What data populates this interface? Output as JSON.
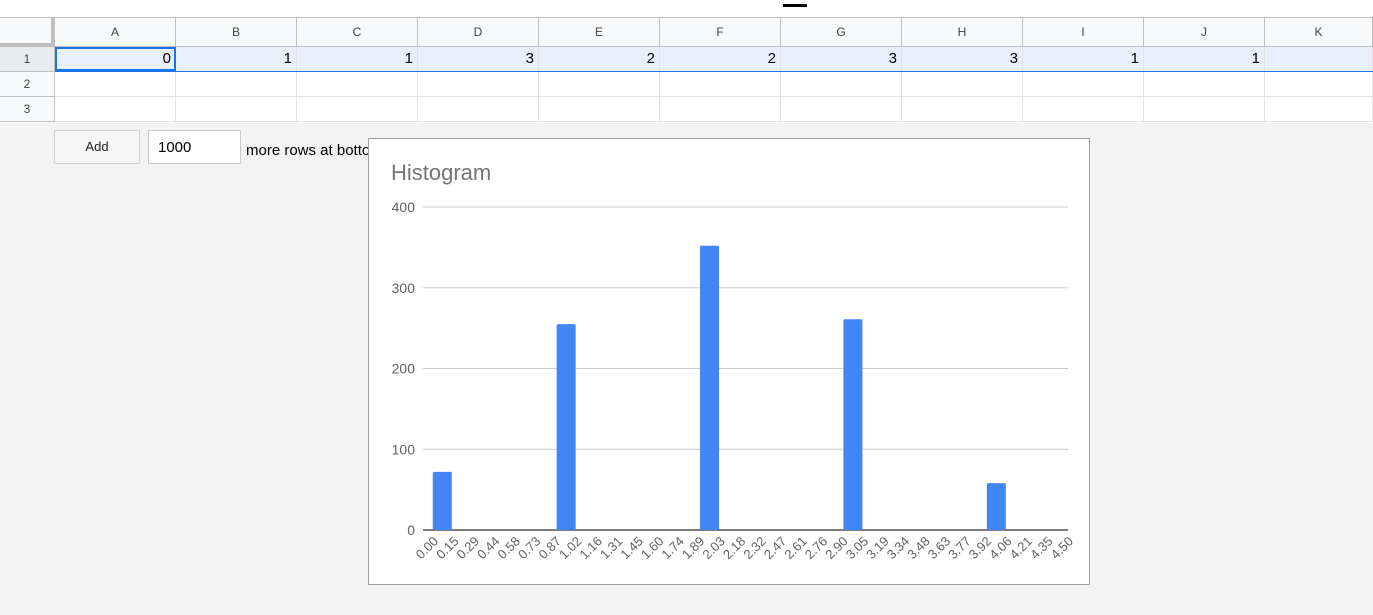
{
  "grid": {
    "columns": [
      "A",
      "B",
      "C",
      "D",
      "E",
      "F",
      "G",
      "H",
      "I",
      "J",
      "K"
    ],
    "rows": [
      "1",
      "2",
      "3"
    ],
    "row1_values": [
      "0",
      "1",
      "1",
      "3",
      "2",
      "2",
      "3",
      "3",
      "1",
      "1",
      ""
    ]
  },
  "add_rows": {
    "button_label": "Add",
    "count_value": "1000",
    "suffix_text": "more rows at bottom."
  },
  "colors": {
    "bar": "#4285f4",
    "selection": "#1a73e8"
  },
  "chart_data": {
    "type": "bar",
    "title": "Histogram",
    "xlabel": "",
    "ylabel": "",
    "ylim": [
      0,
      400
    ],
    "yticks": [
      0,
      100,
      200,
      300,
      400
    ],
    "grid": true,
    "categories": [
      "0.00",
      "0.15",
      "0.29",
      "0.44",
      "0.58",
      "0.73",
      "0.87",
      "1.02",
      "1.16",
      "1.31",
      "1.45",
      "1.60",
      "1.74",
      "1.89",
      "2.03",
      "2.18",
      "2.32",
      "2.47",
      "2.61",
      "2.76",
      "2.90",
      "3.05",
      "3.19",
      "3.34",
      "3.48",
      "3.63",
      "3.77",
      "3.92",
      "4.06",
      "4.21",
      "4.35",
      "4.50"
    ],
    "bars": [
      {
        "x": 0,
        "value": 72
      },
      {
        "x": 1,
        "value": 255
      },
      {
        "x": 2,
        "value": 352
      },
      {
        "x": 3,
        "value": 261
      },
      {
        "x": 4,
        "value": 58
      }
    ]
  }
}
